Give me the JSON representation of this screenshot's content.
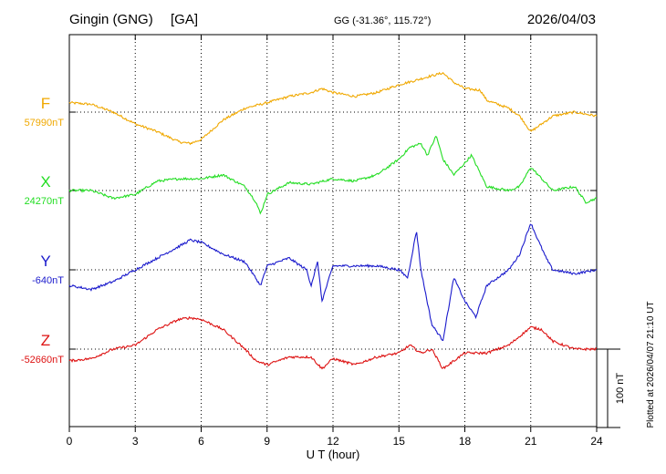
{
  "header": {
    "station": "Gingin (GNG)",
    "network": "[GA]",
    "coords": "GG (-31.36°, 115.72°)",
    "date": "2026/04/03"
  },
  "footer": {
    "plotted": "Plotted at 2026/04/07 21:10 UT"
  },
  "chart_data": {
    "type": "line",
    "xlabel": "U T (hour)",
    "xlim": [
      0,
      24
    ],
    "xticks": [
      0,
      3,
      6,
      9,
      12,
      15,
      18,
      21,
      24
    ],
    "grid": true,
    "scale_bar": "100 nT",
    "scale_bar_nT": 100,
    "series": [
      {
        "name": "F",
        "baseline_label": "57990nT",
        "baseline_nT": 57990,
        "color": "#f0a800",
        "x": [
          0,
          1,
          2,
          3,
          4,
          5,
          5.5,
          6,
          7,
          8,
          9,
          10,
          11,
          11.5,
          12,
          13,
          14,
          15,
          15.7,
          16.3,
          17,
          17.5,
          18,
          18.7,
          19,
          20,
          20.5,
          21,
          21.5,
          22,
          23,
          24
        ],
        "values": [
          12,
          10,
          0,
          -15,
          -25,
          -38,
          -40,
          -35,
          -10,
          5,
          12,
          20,
          25,
          30,
          25,
          20,
          25,
          35,
          40,
          45,
          50,
          38,
          30,
          28,
          15,
          5,
          -5,
          -25,
          -15,
          -5,
          0,
          -5
        ]
      },
      {
        "name": "X",
        "baseline_label": "24270nT",
        "baseline_nT": 24270,
        "color": "#22dd22",
        "x": [
          0,
          1,
          2,
          3,
          4,
          5,
          6,
          7,
          8,
          8.5,
          8.7,
          9,
          10,
          11,
          12,
          13,
          14,
          14.5,
          15,
          15.5,
          16,
          16.3,
          16.7,
          17,
          17.5,
          18,
          18.3,
          19,
          20,
          20.5,
          21,
          21.5,
          22,
          23,
          23.5,
          24
        ],
        "values": [
          0,
          0,
          -10,
          -5,
          12,
          15,
          15,
          20,
          5,
          -15,
          -30,
          -5,
          10,
          8,
          15,
          12,
          20,
          30,
          40,
          55,
          60,
          45,
          70,
          40,
          20,
          35,
          45,
          5,
          0,
          5,
          30,
          15,
          0,
          5,
          -15,
          -10
        ]
      },
      {
        "name": "Y",
        "baseline_label": "-640nT",
        "baseline_nT": -640,
        "color": "#1a1acc",
        "x": [
          0,
          1,
          2,
          3,
          4,
          5,
          5.5,
          6,
          7,
          8,
          8.7,
          9,
          10,
          10.8,
          11,
          11.3,
          11.5,
          12,
          13,
          14,
          15,
          15.4,
          15.8,
          16,
          16.5,
          17,
          17.5,
          18,
          18.5,
          19,
          20,
          20.5,
          21,
          21.3,
          21.7,
          22,
          23,
          24
        ],
        "values": [
          -20,
          -25,
          -15,
          0,
          15,
          30,
          38,
          35,
          20,
          10,
          -20,
          5,
          15,
          0,
          -20,
          10,
          -40,
          5,
          5,
          5,
          0,
          -10,
          50,
          0,
          -70,
          -90,
          -10,
          -40,
          -60,
          -20,
          0,
          20,
          60,
          40,
          15,
          0,
          -5,
          0
        ]
      },
      {
        "name": "Z",
        "baseline_label": "-52660nT",
        "baseline_nT": -52660,
        "color": "#dd1111",
        "x": [
          0,
          1,
          2,
          3,
          4,
          5,
          5.5,
          6,
          7,
          8,
          8.5,
          9,
          10,
          11,
          11.5,
          12,
          13,
          14,
          15,
          15.5,
          16,
          16.5,
          17,
          17.5,
          18,
          19,
          20,
          21,
          21.5,
          22,
          23,
          24
        ],
        "values": [
          -15,
          -12,
          0,
          5,
          25,
          38,
          40,
          38,
          25,
          0,
          -15,
          -20,
          -10,
          -10,
          -25,
          -12,
          -20,
          -10,
          -5,
          5,
          -5,
          0,
          -25,
          -15,
          -5,
          -5,
          5,
          28,
          25,
          10,
          0,
          0
        ]
      }
    ]
  }
}
